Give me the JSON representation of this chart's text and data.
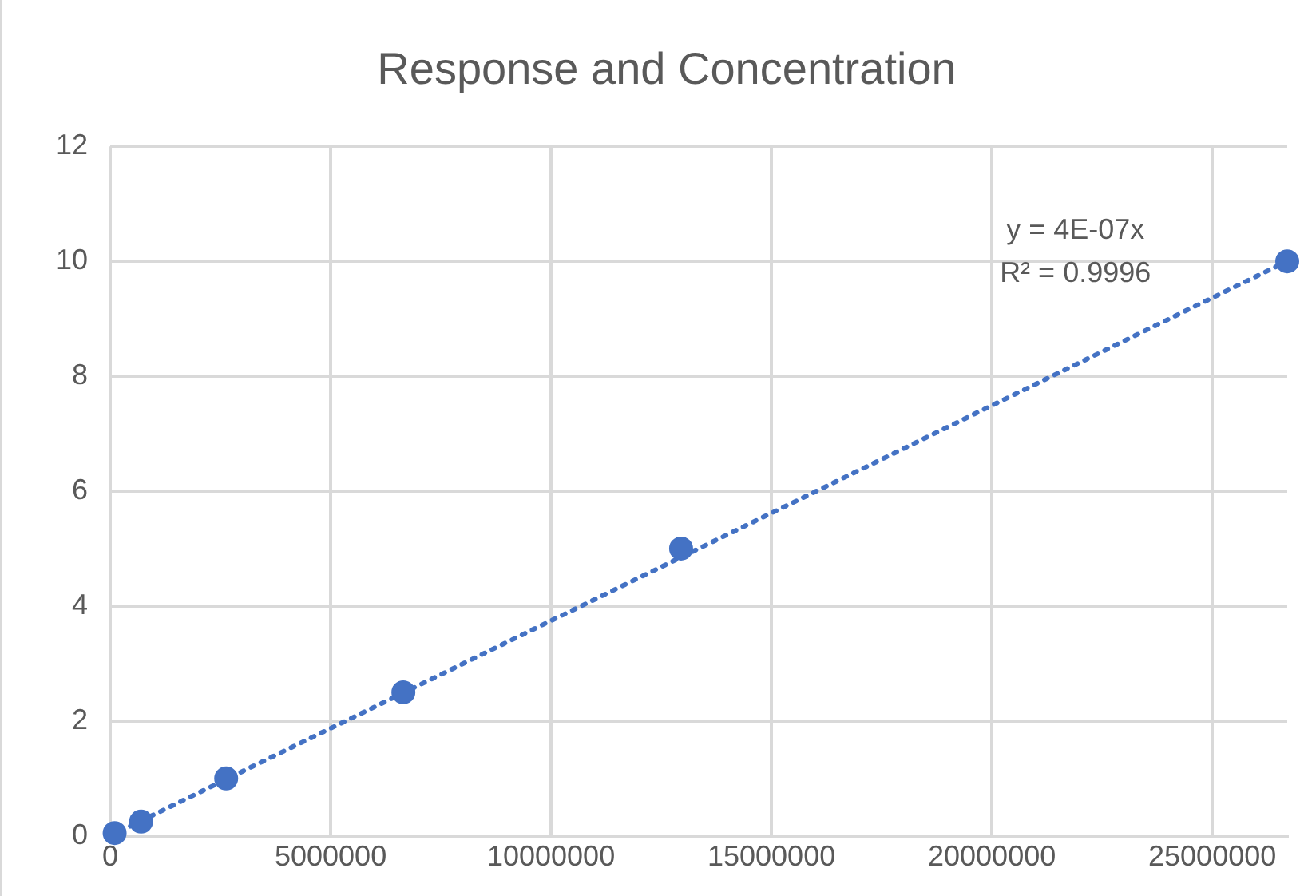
{
  "chart_data": {
    "type": "scatter",
    "title": "Response and Concentration",
    "series": [
      {
        "color": "#4472c4",
        "marker": "circle",
        "x": [
          100000,
          700000,
          2630000,
          6650000,
          12950000,
          26700000
        ],
        "values": [
          0.05,
          0.25,
          1,
          2.5,
          5,
          10
        ]
      },
      {
        "type": "line",
        "color": "#4472c4",
        "line_style": "dotted",
        "marker": "none",
        "x": [
          0,
          26700000
        ],
        "values": [
          0,
          10
        ]
      }
    ],
    "xlim": [
      0,
      26700000
    ],
    "xticks": [
      0,
      5000000,
      10000000,
      15000000,
      20000000,
      25000000
    ],
    "ylim": [
      0,
      12
    ],
    "yticks": [
      0,
      2,
      4,
      6,
      8,
      10,
      12
    ],
    "grid": true,
    "legend": false,
    "annotations": [
      "y = 4E-07x",
      "R² = 0.9996"
    ]
  }
}
